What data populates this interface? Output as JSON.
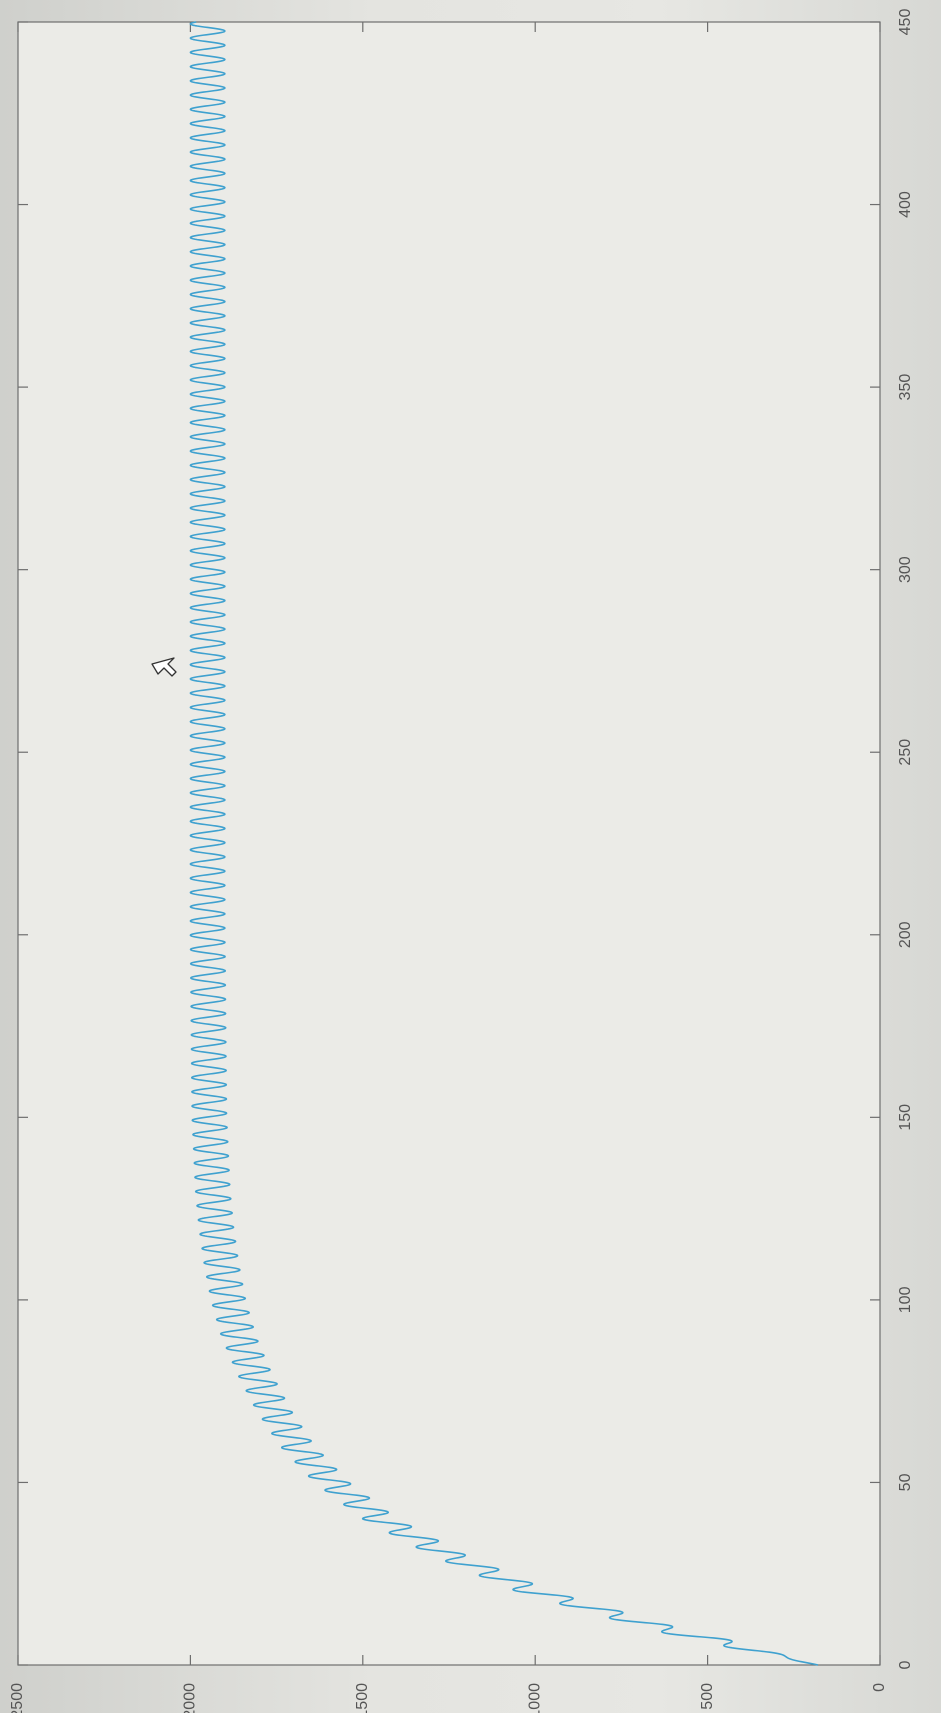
{
  "chart_data": {
    "type": "line",
    "title": "",
    "xlabel": "",
    "ylabel": "",
    "xlim": [
      0,
      450
    ],
    "ylim": [
      0,
      2500
    ],
    "x_ticks": [
      0,
      50,
      100,
      150,
      200,
      250,
      300,
      350,
      400,
      450
    ],
    "y_ticks": [
      0,
      500,
      1000,
      1500,
      2000,
      2500
    ],
    "grid": false,
    "orientation": "rotated 90 degrees clockwise in photo (x axis runs top-to-bottom along right edge, y axis along bottom edge)",
    "series": [
      {
        "color": "#3fa1cf",
        "x": [
          0,
          10,
          20,
          30,
          40,
          50,
          60,
          70,
          80,
          90,
          100,
          110,
          120,
          130,
          140,
          150,
          200,
          250,
          300,
          350,
          400,
          450
        ],
        "y": [
          180,
          630,
          1000,
          1250,
          1450,
          1590,
          1690,
          1760,
          1815,
          1860,
          1890,
          1910,
          1925,
          1935,
          1940,
          1945,
          1950,
          1950,
          1950,
          1950,
          1950,
          1950
        ],
        "oscillation_amplitude": 50,
        "oscillation_period": 3.9
      }
    ]
  },
  "colors": {
    "plot_background": "#ebebe7",
    "axis": "#6e6e6e",
    "line": "#3fa1cf"
  },
  "cursor": {
    "icon": "arrow-cursor-icon",
    "x": 244,
    "y": 180
  }
}
